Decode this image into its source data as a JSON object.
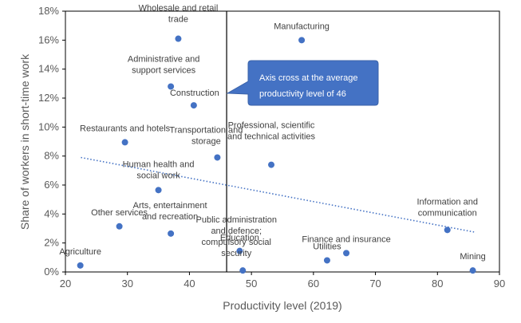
{
  "chart_data": {
    "type": "scatter",
    "title": "",
    "xlabel": "Productivity level (2019)",
    "ylabel": "Share of workers in short-time work",
    "xlim": [
      20,
      90
    ],
    "ylim": [
      0,
      18
    ],
    "x_ticks": [
      20,
      30,
      40,
      50,
      60,
      70,
      80,
      90
    ],
    "y_ticks": [
      0,
      2,
      4,
      6,
      8,
      10,
      12,
      14,
      16,
      18
    ],
    "y_tick_labels": [
      "0%",
      "2%",
      "4%",
      "6%",
      "8%",
      "10%",
      "12%",
      "14%",
      "16%",
      "18%"
    ],
    "grid": false,
    "legend": "none",
    "point_color": "#4472c4",
    "trendline": {
      "style": "dotted",
      "color": "#4472c4",
      "x": [
        22.5,
        86
      ],
      "y": [
        7.9,
        2.75
      ]
    },
    "reference_line": {
      "x": 46,
      "color": "#000000"
    },
    "callout": {
      "lines": [
        "Axis cross at the average",
        "productivity level of 46"
      ],
      "fill": "#4472c4"
    },
    "points": [
      {
        "label_lines": [
          "Wholesale and retail",
          "trade"
        ],
        "x": 38.2,
        "y": 16.1
      },
      {
        "label_lines": [
          "Manufacturing"
        ],
        "x": 58.1,
        "y": 16.0
      },
      {
        "label_lines": [
          "Administrative and",
          "support services"
        ],
        "x": 37.0,
        "y": 12.8
      },
      {
        "label_lines": [
          "Construction"
        ],
        "x": 40.7,
        "y": 11.5
      },
      {
        "label_lines": [
          "Restaurants and hotels"
        ],
        "x": 29.6,
        "y": 8.95
      },
      {
        "label_lines": [
          "Transportation and",
          "storage"
        ],
        "x": 44.5,
        "y": 7.9
      },
      {
        "label_lines": [
          "Professional, scientific",
          "and technical activities"
        ],
        "x": 53.2,
        "y": 7.4
      },
      {
        "label_lines": [
          "Human health and",
          "social work"
        ],
        "x": 35.0,
        "y": 5.65
      },
      {
        "label_lines": [
          "Arts, entertainment",
          "and recreation"
        ],
        "x": 37.0,
        "y": 2.65
      },
      {
        "label_lines": [
          "Other services"
        ],
        "x": 28.7,
        "y": 3.15
      },
      {
        "label_lines": [
          "Public administration",
          "and defence;",
          "compulsory social",
          "security"
        ],
        "x": 48.6,
        "y": 0.1
      },
      {
        "label_lines": [
          "Education"
        ],
        "x": 48.1,
        "y": 1.45
      },
      {
        "label_lines": [
          "Finance and insurance"
        ],
        "x": 65.3,
        "y": 1.3
      },
      {
        "label_lines": [
          "Utilities"
        ],
        "x": 62.2,
        "y": 0.8
      },
      {
        "label_lines": [
          "Information and",
          "communication"
        ],
        "x": 81.6,
        "y": 2.9
      },
      {
        "label_lines": [
          "Agriculture"
        ],
        "x": 22.4,
        "y": 0.45
      },
      {
        "label_lines": [
          "Mining"
        ],
        "x": 85.7,
        "y": 0.1
      }
    ]
  }
}
